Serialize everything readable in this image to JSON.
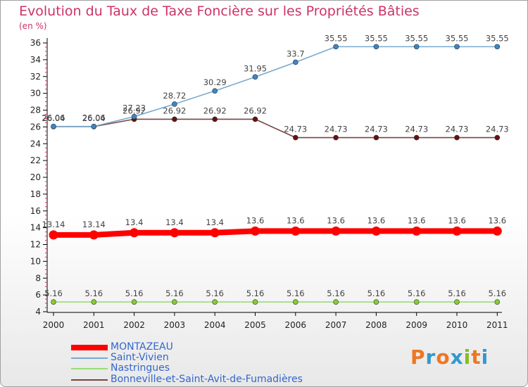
{
  "title": "Evolution du Taux de Taxe Foncière sur les Propriétés Bâties",
  "subtitle": "(en %)",
  "brand": {
    "letters": [
      "P",
      "r",
      "o",
      "x",
      "i",
      "t",
      "i"
    ],
    "colors": [
      "#ee7722",
      "#3399cc",
      "#ee7722",
      "#3399cc",
      "#88bb22",
      "#ee7722",
      "#3399cc"
    ]
  },
  "chart_data": {
    "type": "line",
    "categories": [
      "2000",
      "2001",
      "2002",
      "2003",
      "2004",
      "2005",
      "2006",
      "2007",
      "2008",
      "2009",
      "2010",
      "2011"
    ],
    "ylim": [
      4,
      36
    ],
    "yticks": [
      4,
      6,
      8,
      10,
      12,
      14,
      16,
      18,
      20,
      22,
      24,
      26,
      28,
      30,
      32,
      34,
      36
    ],
    "grid": false,
    "legend_position": "bottom-left",
    "series": [
      {
        "name": "MONTAZEAU",
        "color": "#ff0000",
        "marker": "#ff0000",
        "values": [
          13.14,
          13.14,
          13.4,
          13.4,
          13.4,
          13.6,
          13.6,
          13.6,
          13.6,
          13.6,
          13.6,
          13.6
        ],
        "labels": [
          "13.14",
          "13.14",
          "13.4",
          "13.4",
          "13.4",
          "13.6",
          "13.6",
          "13.6",
          "13.6",
          "13.6",
          "13.6",
          "13.6"
        ]
      },
      {
        "name": "Saint-Vivien",
        "color": "#7aaad0",
        "marker": "#3a86c8",
        "values": [
          26.06,
          26.06,
          27.23,
          28.72,
          30.29,
          31.95,
          33.7,
          35.55,
          35.55,
          35.55,
          35.55,
          35.55
        ],
        "labels": [
          "26.06",
          "26.06",
          "27.23",
          "28.72",
          "30.29",
          "31.95",
          "33.7",
          "35.55",
          "35.55",
          "35.55",
          "35.55",
          "35.55"
        ]
      },
      {
        "name": "Nastringues",
        "color": "#99dd77",
        "marker": "#88cc33",
        "values": [
          5.16,
          5.16,
          5.16,
          5.16,
          5.16,
          5.16,
          5.16,
          5.16,
          5.16,
          5.16,
          5.16,
          5.16
        ],
        "labels": [
          "5.16",
          "5.16",
          "5.16",
          "5.16",
          "5.16",
          "5.16",
          "5.16",
          "5.16",
          "5.16",
          "5.16",
          "5.16",
          "5.16"
        ]
      },
      {
        "name": "Bonneville-et-Saint-Avit-de-Fumadières",
        "color": "#774444",
        "marker": "#661111",
        "values": [
          26.04,
          26.04,
          26.92,
          26.92,
          26.92,
          26.92,
          24.73,
          24.73,
          24.73,
          24.73,
          24.73,
          24.73
        ],
        "labels": [
          "26.04",
          "26.04",
          "26.92",
          "26.92",
          "26.92",
          "26.92",
          "24.73",
          "24.73",
          "24.73",
          "24.73",
          "24.73",
          "24.73"
        ]
      }
    ]
  }
}
